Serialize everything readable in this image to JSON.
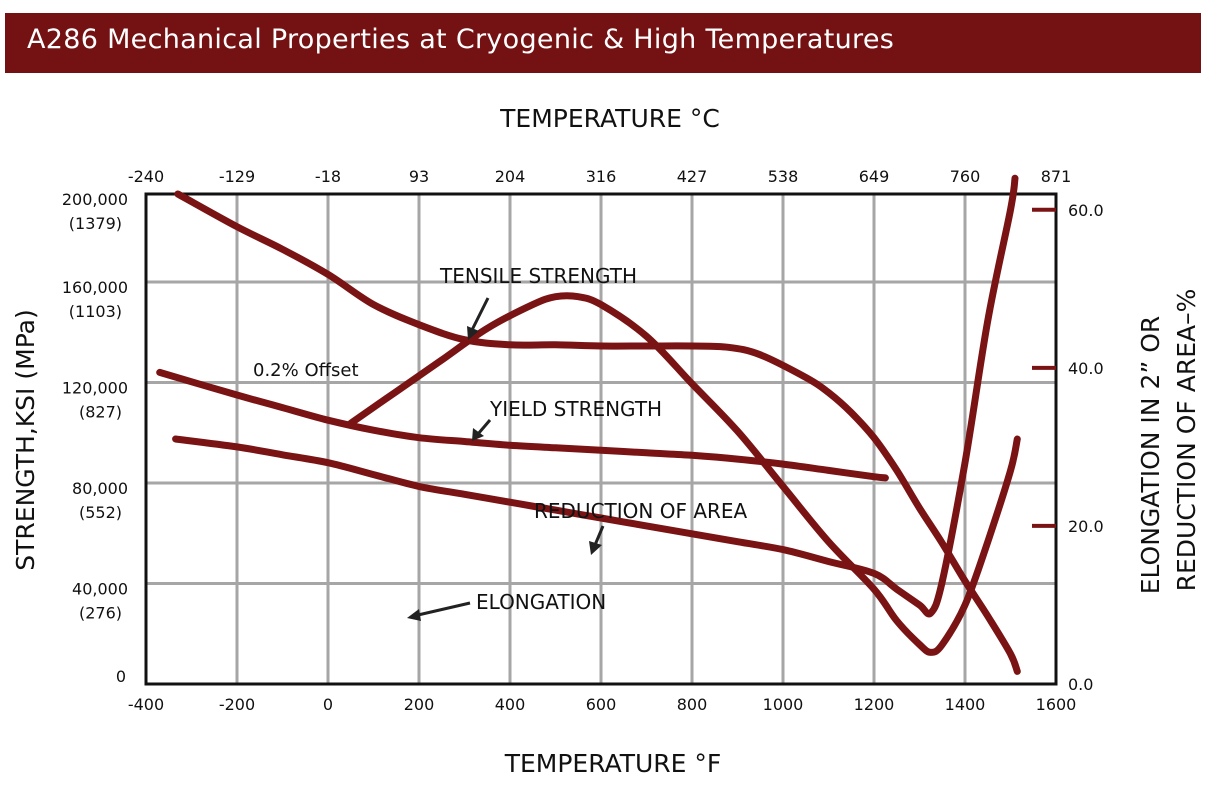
{
  "page_title": "A286 Mechanical Properties at Cryogenic & High Temperatures",
  "colors": {
    "banner": "#741113",
    "curve": "#7a1414",
    "grid": "#a6a6a6"
  },
  "chart_data": {
    "type": "line",
    "top_axis": {
      "label": "TEMPERATURE °C",
      "ticks": [
        "-240",
        "-129",
        "-18",
        "93",
        "204",
        "316",
        "427",
        "538",
        "649",
        "760",
        "871"
      ]
    },
    "bottom_axis": {
      "label": "TEMPERATURE °F",
      "ticks": [
        "-400",
        "-200",
        "0",
        "200",
        "400",
        "600",
        "800",
        "1000",
        "1200",
        "1400",
        "1600"
      ],
      "range": [
        -400,
        1600
      ]
    },
    "left_axis": {
      "label": "STRENGTH,KSI (MPa)",
      "range": [
        0,
        195000
      ],
      "ticks": [
        {
          "value": 0,
          "main": "0",
          "sub": ""
        },
        {
          "value": 40000,
          "main": "40,000",
          "sub": "(276)"
        },
        {
          "value": 80000,
          "main": "80,000",
          "sub": "(552)"
        },
        {
          "value": 120000,
          "main": "120,000",
          "sub": "(827)"
        },
        {
          "value": 160000,
          "main": "160,000",
          "sub": "(1103)"
        },
        {
          "value": 200000,
          "main": "200,000",
          "sub": "(1379)"
        }
      ]
    },
    "right_axis": {
      "label_line1": "ELONGATION IN 2” OR",
      "label_line2": "REDUCTION OF AREA–%",
      "range": [
        0,
        62
      ],
      "ticks": [
        "0.0",
        "20.0",
        "40.0",
        "60.0"
      ],
      "tick_values": [
        0,
        20,
        40,
        60
      ]
    },
    "grid": true,
    "series": [
      {
        "name": "TENSILE STRENGTH",
        "axis": "left",
        "x": [
          -330,
          -200,
          -100,
          0,
          100,
          200,
          300,
          400,
          500,
          600,
          700,
          800,
          880,
          950,
          1050,
          1100,
          1150,
          1200,
          1250,
          1300,
          1350,
          1400,
          1450,
          1500,
          1515
        ],
        "y": [
          195000,
          182000,
          173000,
          163000,
          151000,
          143000,
          137000,
          135000,
          135000,
          134500,
          134500,
          134500,
          134000,
          131000,
          122000,
          116000,
          108000,
          98000,
          85000,
          70000,
          56000,
          41000,
          27000,
          12000,
          5000
        ]
      },
      {
        "name": "YIELD STRENGTH",
        "axis": "left",
        "x": [
          -370,
          -200,
          -100,
          0,
          100,
          200,
          300,
          400,
          500,
          600,
          700,
          800,
          900,
          1000,
          1100,
          1200,
          1225
        ],
        "y": [
          124000,
          115000,
          110000,
          105000,
          101000,
          98000,
          96500,
          95000,
          94000,
          93000,
          92000,
          91000,
          89500,
          87500,
          85000,
          82500,
          82000
        ]
      },
      {
        "name": "REDUCTION OF AREA",
        "axis": "right",
        "x": [
          50,
          150,
          250,
          350,
          450,
          500,
          550,
          600,
          700,
          800,
          900,
          1000,
          1100,
          1200,
          1250,
          1300,
          1325,
          1350,
          1400,
          1450,
          1500,
          1515
        ],
        "y": [
          33,
          37,
          41,
          45,
          48,
          49,
          49,
          48,
          44,
          38,
          32,
          25,
          18,
          12,
          8,
          5,
          4,
          5,
          10,
          18,
          27,
          31
        ]
      },
      {
        "name": "ELONGATION",
        "axis": "right",
        "x": [
          -335,
          -200,
          -100,
          0,
          100,
          200,
          300,
          400,
          500,
          600,
          700,
          800,
          900,
          1000,
          1100,
          1200,
          1250,
          1300,
          1325,
          1350,
          1400,
          1450,
          1500,
          1510
        ],
        "y": [
          31,
          30,
          29,
          28,
          26.5,
          25,
          24,
          23,
          22,
          21,
          20,
          19,
          18,
          17,
          15.5,
          14,
          12,
          10,
          9,
          13,
          28,
          46,
          60,
          64
        ]
      }
    ],
    "annotations": [
      {
        "text": "TENSILE STRENGTH"
      },
      {
        "text": "0.2% Offset"
      },
      {
        "text": "YIELD STRENGTH"
      },
      {
        "text": "REDUCTION OF AREA"
      },
      {
        "text": "ELONGATION"
      }
    ]
  }
}
